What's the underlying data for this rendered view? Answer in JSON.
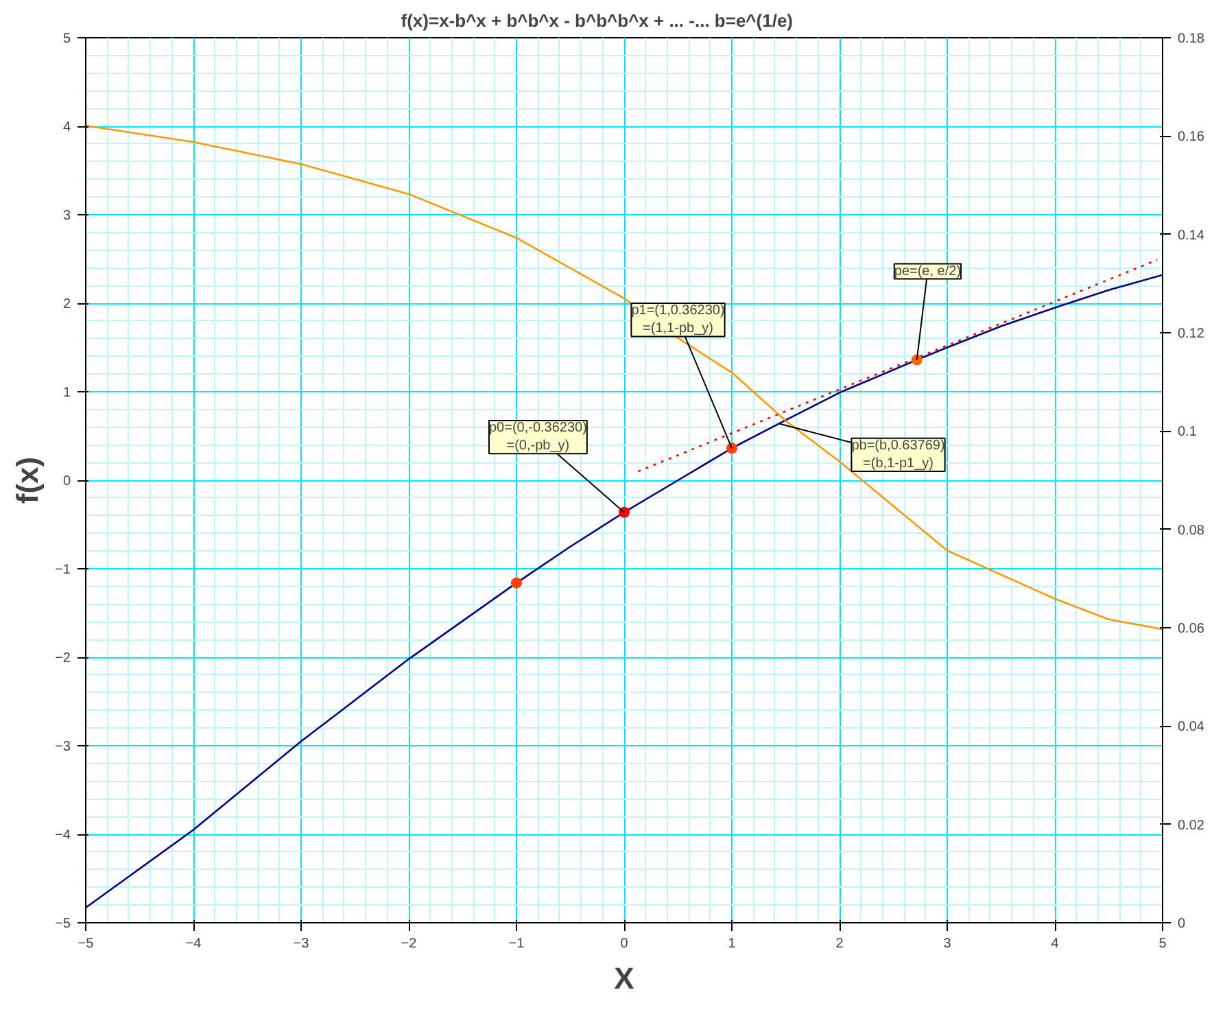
{
  "chart_data": {
    "type": "line",
    "title": "f(x)=x-b^x + b^b^x - b^b^b^x + ... -...            b=e^(1/e)",
    "xlabel": "X",
    "ylabel": "f(x)",
    "xlim": [
      -5,
      5
    ],
    "xticks": [
      -5,
      -4,
      -3,
      -2,
      -1,
      0,
      1,
      2,
      3,
      4,
      5
    ],
    "ylim": [
      -5,
      5
    ],
    "yticks": [
      -5,
      -4,
      -3,
      -2,
      -1,
      0,
      1,
      2,
      3,
      4,
      5
    ],
    "y2lim": [
      0,
      0.18
    ],
    "y2ticks": [
      0,
      0.02,
      0.04,
      0.06,
      0.08,
      0.1,
      0.12,
      0.14,
      0.16,
      0.18
    ],
    "grid": true,
    "series": [
      {
        "color": "#000080",
        "x": [
          -5,
          -4,
          -3,
          -2,
          -1,
          -0.5,
          0,
          0.5,
          1,
          1.5,
          2,
          2.718,
          3,
          3.5,
          4,
          4.5,
          5
        ],
        "values": [
          -4.83,
          -3.95,
          -2.95,
          -2.02,
          -1.16,
          -0.75,
          -0.3623,
          0.0,
          0.3623,
          0.68,
          0.99,
          1.36,
          1.5,
          1.74,
          1.95,
          2.15,
          2.32
        ]
      },
      {
        "color": "#ff9900",
        "axis": "y2",
        "x": [
          -5,
          -4,
          -3,
          -2,
          -1,
          0,
          0.5,
          1,
          1.5,
          2,
          3,
          4,
          4.5,
          5
        ],
        "values": [
          0.1621,
          0.1588,
          0.1543,
          0.1482,
          0.1393,
          0.127,
          0.1189,
          0.1119,
          0.1021,
          0.0938,
          0.0757,
          0.0659,
          0.0617,
          0.0597
        ]
      },
      {
        "color": "#ff0000",
        "line_style": "dotted",
        "x": [
          0.13,
          4.95
        ],
        "values": [
          0.1,
          2.49
        ]
      },
      {
        "type": "scatter",
        "marker": "circle",
        "x": [
          -1,
          0,
          1,
          2.718
        ],
        "values": [
          -1.16,
          -0.3623,
          0.3623,
          1.36
        ],
        "colors": [
          "#ff4000",
          "#ff0000",
          "#ff4000",
          "#ff6600"
        ]
      }
    ],
    "annotations": [
      {
        "text": "p0=(0,-0.36230)\n=(0,-pb_y)",
        "x": 0,
        "y": -0.3623
      },
      {
        "text": "p1=(1,0.36230)\n=(1,1-pb_y)",
        "x": 1,
        "y": 0.3623
      },
      {
        "text": "pb=(b,0.63769)\n=(b,1-p1_y)",
        "x": 1.4447,
        "y": 0.63769
      },
      {
        "text": "pe=(e, e/2)",
        "x": 2.718,
        "y": 1.36
      }
    ]
  }
}
